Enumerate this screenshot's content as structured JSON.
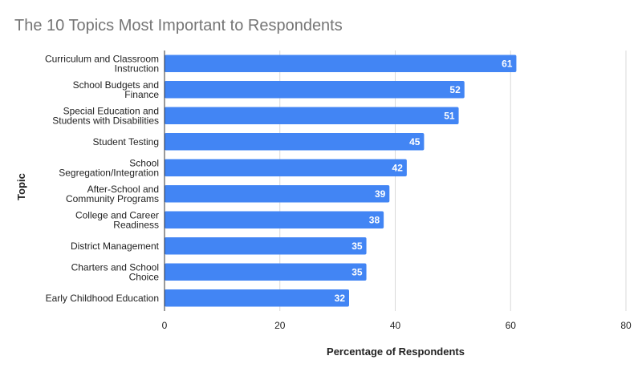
{
  "chart_data": {
    "type": "bar",
    "orientation": "horizontal",
    "title": "The 10 Topics Most Important to Respondents",
    "xlabel": "Percentage of Respondents",
    "ylabel": "Topic",
    "xlim": [
      0,
      80
    ],
    "xticks": [
      0,
      20,
      40,
      60,
      80
    ],
    "grid": true,
    "legend": "none",
    "bar_color": "#4285F4",
    "categories": [
      [
        "Curriculum and Classroom",
        "Instruction"
      ],
      [
        "School Budgets and",
        "Finance"
      ],
      [
        "Special Education and",
        "Students with Disabilities"
      ],
      [
        "Student Testing"
      ],
      [
        "School",
        "Segregation/Integration"
      ],
      [
        "After-School and",
        "Community Programs"
      ],
      [
        "College and Career",
        "Readiness"
      ],
      [
        "District Management"
      ],
      [
        "Charters and School",
        "Choice"
      ],
      [
        "Early Childhood Education"
      ]
    ],
    "values": [
      61,
      52,
      51,
      45,
      42,
      39,
      38,
      35,
      35,
      32
    ]
  }
}
